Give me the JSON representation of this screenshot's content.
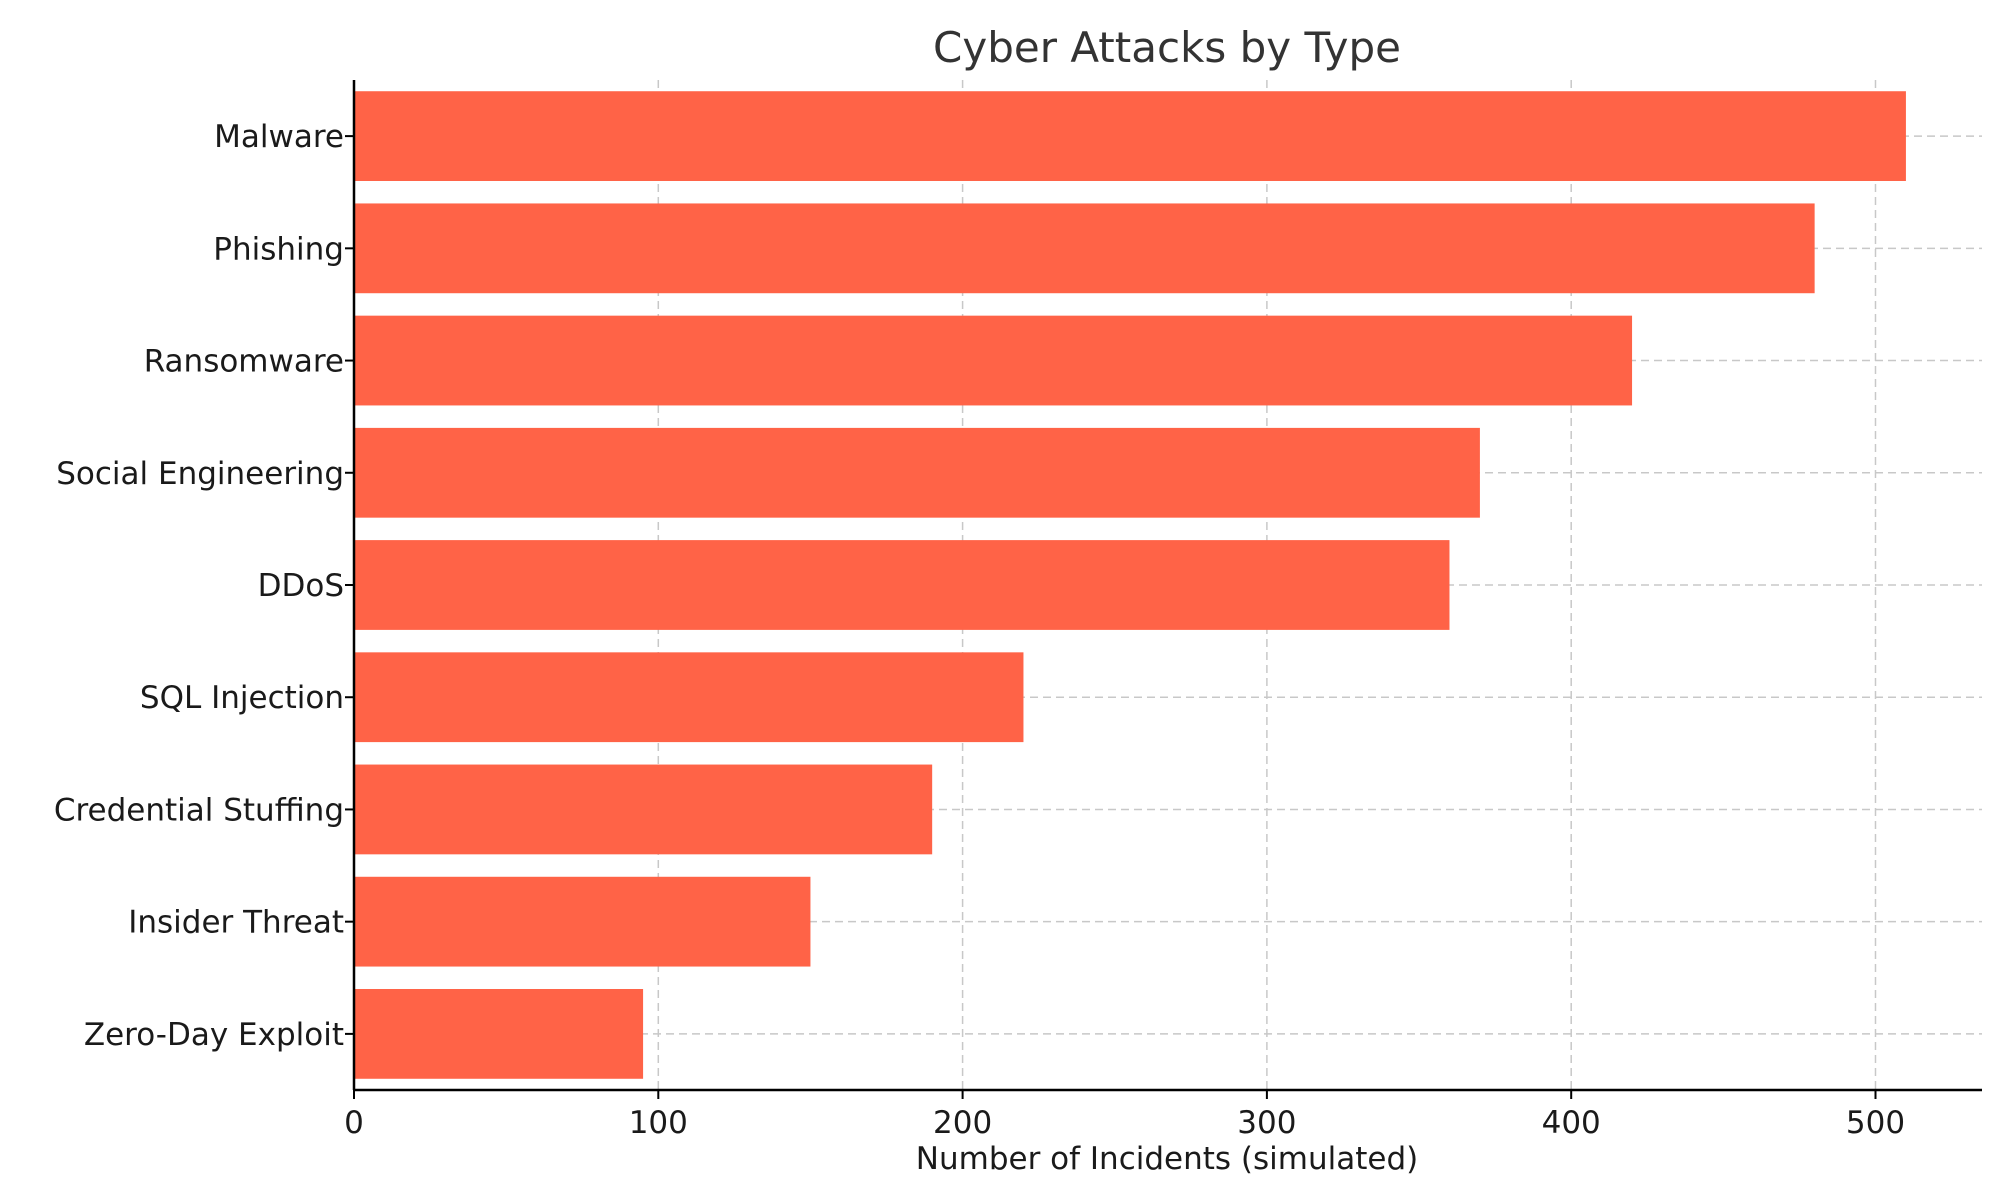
{
  "chart_data": {
    "type": "bar",
    "orientation": "horizontal",
    "title": "Cyber Attacks by Type",
    "xlabel": "Number of Incidents (simulated)",
    "ylabel": "",
    "categories": [
      "Malware",
      "Phishing",
      "Ransomware",
      "Social Engineering",
      "DDoS",
      "SQL Injection",
      "Credential Stuffing",
      "Insider Threat",
      "Zero-Day Exploit"
    ],
    "values": [
      510,
      480,
      420,
      370,
      360,
      220,
      190,
      150,
      95
    ],
    "xlim": [
      0,
      535
    ],
    "xticks": [
      0,
      100,
      200,
      300,
      400,
      500
    ],
    "grid": true,
    "bar_color": "#ff6347"
  }
}
